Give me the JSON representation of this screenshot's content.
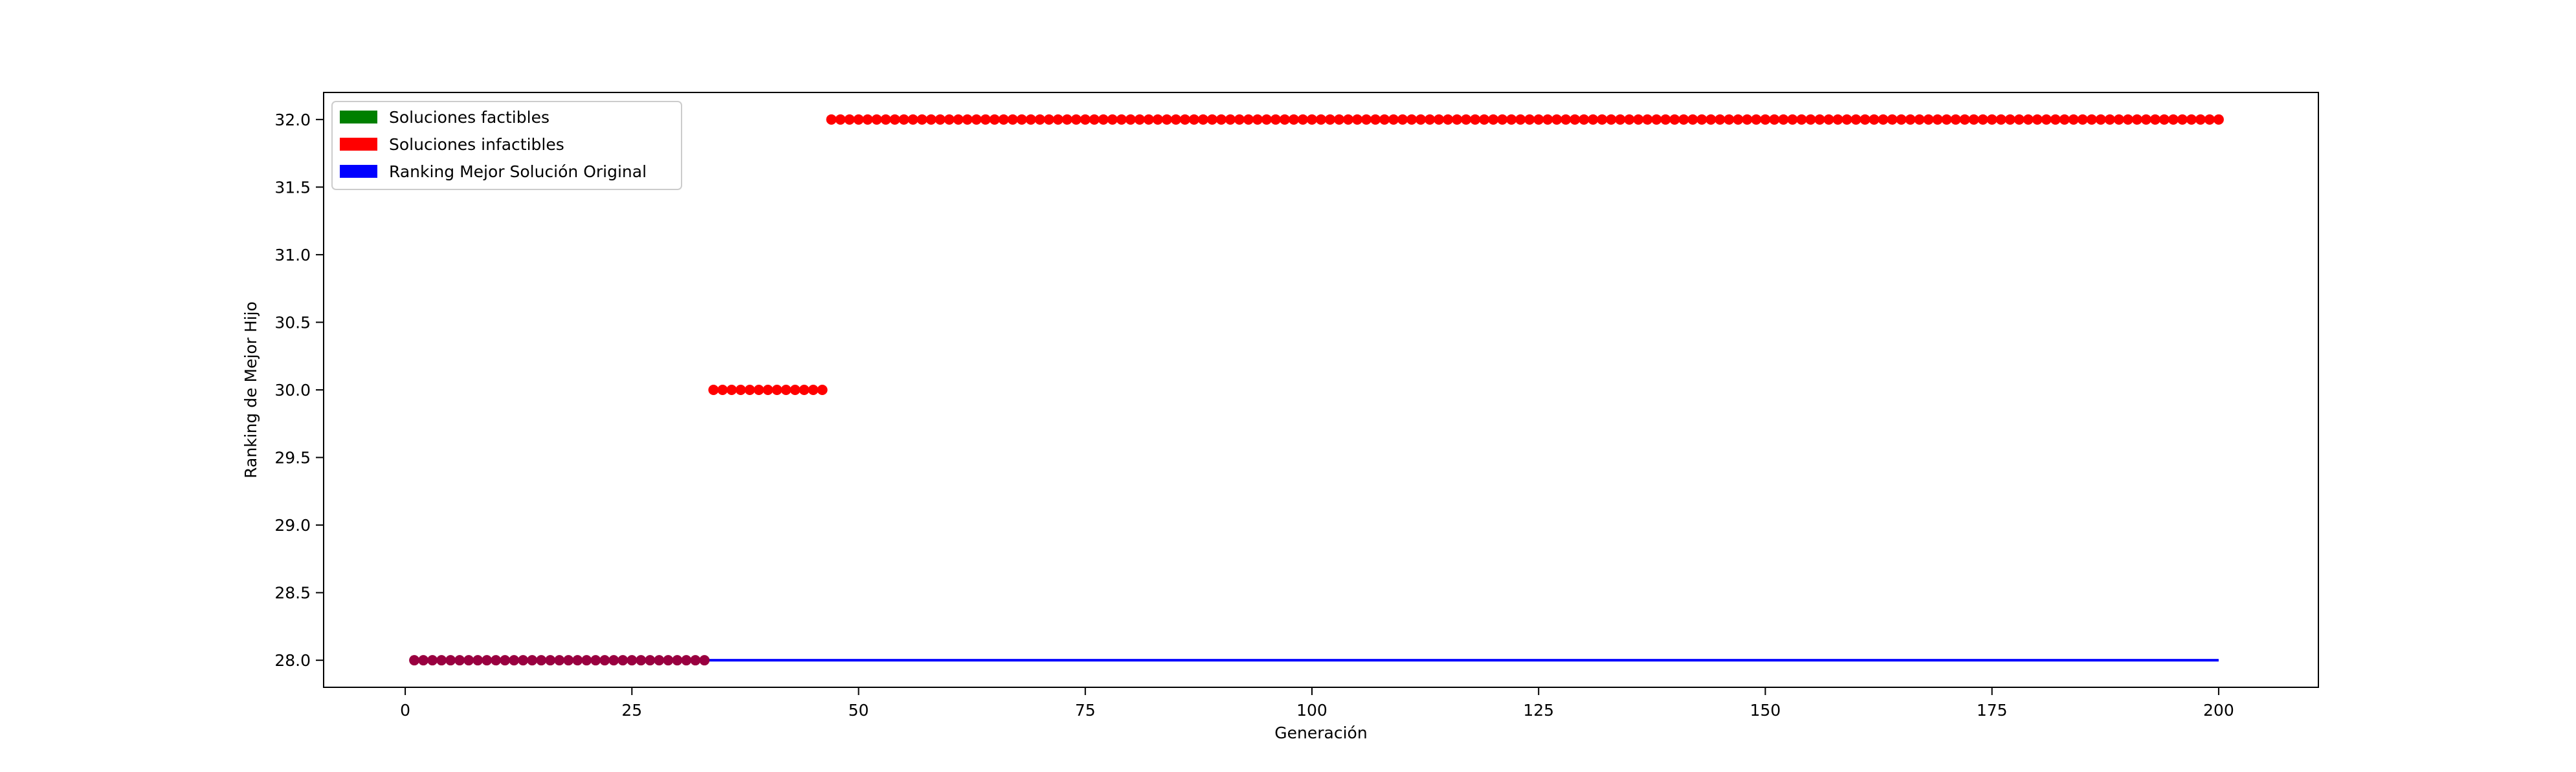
{
  "chart_data": {
    "type": "scatter",
    "title": "",
    "xlabel": "Generación",
    "ylabel": "Ranking de Mejor Hijo",
    "xlim": [
      -9,
      211
    ],
    "ylim": [
      27.8,
      32.2
    ],
    "xticks": [
      0,
      25,
      50,
      75,
      100,
      125,
      150,
      175,
      200
    ],
    "yticks": [
      28.0,
      28.5,
      29.0,
      29.5,
      30.0,
      30.5,
      31.0,
      31.5,
      32.0
    ],
    "grid": false,
    "legend_position": "top-left",
    "legend": [
      {
        "label": "Soluciones factibles",
        "color": "#008000"
      },
      {
        "label": "Soluciones infactibles",
        "color": "#ff0000"
      },
      {
        "label": "Ranking Mejor Solución Original",
        "color": "#0000ff"
      }
    ],
    "series": [
      {
        "name": "Soluciones factibles",
        "kind": "points",
        "color": "#008000",
        "segments": []
      },
      {
        "name": "Soluciones infactibles",
        "kind": "points",
        "color": "#ff0000",
        "segments": [
          {
            "x_start": 1,
            "x_end": 33,
            "y": 28.0
          },
          {
            "x_start": 34,
            "x_end": 46,
            "y": 30.0
          },
          {
            "x_start": 47,
            "x_end": 200,
            "y": 32.0
          }
        ]
      },
      {
        "name": "Ranking Mejor Solución Original",
        "kind": "line",
        "color": "#0000ff",
        "x": [
          1,
          200
        ],
        "y": [
          28.0,
          28.0
        ]
      }
    ]
  }
}
